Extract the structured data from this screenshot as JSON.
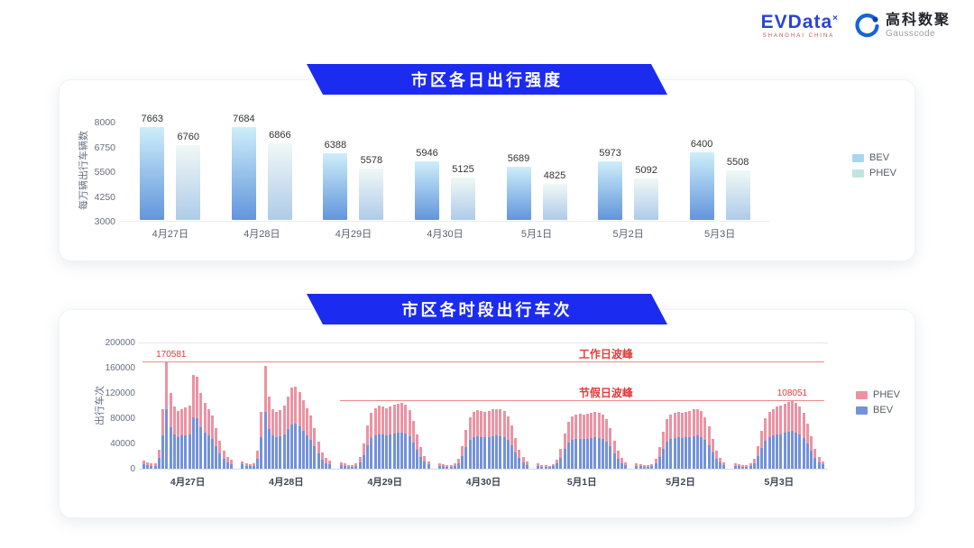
{
  "logo": {
    "evdata_text": "EVData",
    "evdata_sup": "×",
    "evdata_sub": "SHANGHAI CHINA",
    "gausscode_cn": "高科数聚",
    "gausscode_en": "Gausscode"
  },
  "colors": {
    "banner_blue": "#1c2bf0",
    "annotation_red": "#e03c3c",
    "red_line": "#ef8a8a",
    "evdata_blue": "#2a43d4",
    "gausscode_blue": "#1565d8"
  },
  "chart_data": [
    {
      "type": "bar",
      "title": "市区各日出行强度",
      "ylabel": "每万辆出行车辆数",
      "ymin": 3000,
      "ymax": 8000,
      "yticks": [
        8000,
        6750,
        5500,
        4250,
        3000
      ],
      "grid": false,
      "legend_position": "right",
      "categories": [
        "4月27日",
        "4月28日",
        "4月29日",
        "4月30日",
        "5月1日",
        "5月2日",
        "5月3日"
      ],
      "series": [
        {
          "name": "BEV",
          "values": [
            7663,
            7684,
            6388,
            5946,
            5689,
            5973,
            6400
          ],
          "gradient_top": "#cdeef9",
          "gradient_bottom": "#6295dc",
          "legend_color": "#a9d6f0"
        },
        {
          "name": "PHEV",
          "values": [
            6760,
            6866,
            5578,
            5125,
            4825,
            5092,
            5508
          ],
          "gradient_top": "#f0f8f6",
          "gradient_bottom": "#aecbe9",
          "legend_color": "#c2e4e0"
        }
      ]
    },
    {
      "type": "bar-stacked",
      "title": "市区各时段出行车次",
      "ylabel": "出行车次",
      "ymax": 200000,
      "yticks": [
        200000,
        160000,
        120000,
        80000,
        40000,
        0
      ],
      "legend_position": "right",
      "legend": [
        "PHEV",
        "BEV"
      ],
      "series_colors": {
        "BEV": "#7392d8",
        "PHEV": "#eb93a3"
      },
      "categories": [
        "4月27日",
        "4月28日",
        "4月29日",
        "4月30日",
        "5月1日",
        "5月2日",
        "5月3日"
      ],
      "hours_per_day": 24,
      "bev_share": 0.55,
      "totals_by_day": [
        [
          13000,
          10000,
          8000,
          9000,
          30000,
          95000,
          170581,
          120000,
          98000,
          92000,
          95000,
          97000,
          100000,
          148000,
          146000,
          120000,
          105000,
          95000,
          85000,
          65000,
          45000,
          28000,
          18000,
          14000
        ],
        [
          12000,
          9000,
          7500,
          8500,
          28000,
          90000,
          163000,
          115000,
          95000,
          90000,
          93000,
          100000,
          115000,
          128000,
          130000,
          122000,
          108000,
          96000,
          84000,
          64000,
          43000,
          26000,
          17000,
          13000
        ],
        [
          10000,
          8000,
          6500,
          6000,
          9000,
          18000,
          40000,
          68000,
          88000,
          96000,
          100000,
          98000,
          96000,
          98000,
          101000,
          103000,
          105000,
          102000,
          93000,
          76000,
          54000,
          34000,
          20000,
          12000
        ],
        [
          9000,
          7000,
          6000,
          5500,
          8000,
          16000,
          36000,
          62000,
          82000,
          90000,
          93000,
          92000,
          90000,
          92000,
          94000,
          95000,
          94000,
          91000,
          83000,
          68000,
          48000,
          30000,
          18000,
          11000
        ],
        [
          8500,
          6500,
          5500,
          5000,
          7500,
          15000,
          32000,
          56000,
          75000,
          83000,
          86000,
          87000,
          86000,
          87000,
          89000,
          90000,
          89000,
          86000,
          78000,
          64000,
          45000,
          28000,
          17000,
          10000
        ],
        [
          8800,
          6800,
          5600,
          5200,
          7800,
          15500,
          34000,
          58000,
          78000,
          86000,
          89000,
          90000,
          89000,
          90000,
          92000,
          94000,
          95000,
          91000,
          82000,
          67000,
          47000,
          29000,
          17500,
          10500
        ],
        [
          9000,
          7000,
          5800,
          5400,
          8000,
          16000,
          36000,
          60000,
          80000,
          90000,
          95000,
          98000,
          100000,
          103000,
          106000,
          108051,
          105000,
          99000,
          88000,
          72000,
          52000,
          32000,
          19000,
          12000
        ]
      ],
      "annotations": {
        "workday_peak_value": "170581",
        "workday_peak_label": "工作日波峰",
        "workday_peak_y": 170581,
        "holiday_peak_value": "108051",
        "holiday_peak_label": "节假日波峰",
        "holiday_peak_y": 108051
      }
    }
  ]
}
